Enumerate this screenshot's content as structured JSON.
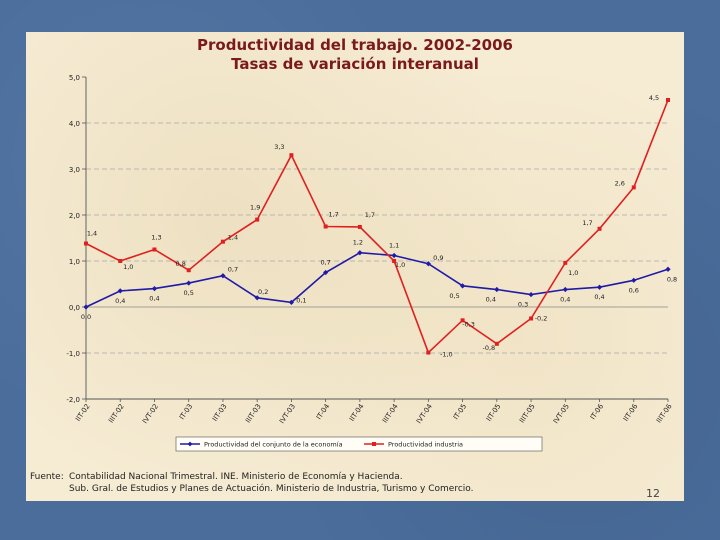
{
  "slide": {
    "source_label": "Fuente:",
    "source_line1": "Contabilidad Nacional Trimestral. INE. Ministerio de Economía y Hacienda.",
    "source_line2": "Sub. Gral. de Estudios y Planes de Actuación. Ministerio de Industria, Turismo y Comercio.",
    "page_number": "12"
  },
  "colors": {
    "series_economy": "#1f1aa8",
    "series_industry": "#e02020",
    "title": "#7a1a1a"
  },
  "chart_data": {
    "type": "line",
    "title": "Productividad del trabajo. 2002-2006",
    "subtitle": "Tasas de variación interanual",
    "xlabel": "",
    "ylabel": "",
    "ylim": [
      -2.0,
      5.0
    ],
    "yticks": [
      "5,0",
      "4,0",
      "3,0",
      "2,0",
      "1,0",
      "0,0",
      "-1,0",
      "-2,0"
    ],
    "ytick_values": [
      5,
      4,
      3,
      2,
      1,
      0,
      -1,
      -2
    ],
    "categories": [
      "IIT-02",
      "IIIT-02",
      "IVT-02",
      "IT-03",
      "IIT-03",
      "IIIT-03",
      "IVT-03",
      "IT-04",
      "IIT-04",
      "IIIT-04",
      "IVT-04",
      "IT-05",
      "IIT-05",
      "IIIT-05",
      "IVT-05",
      "IT-06",
      "IIT-06",
      "IIIT-06"
    ],
    "legend_position": "bottom",
    "series": [
      {
        "name": "Productividad del conjunto de la economía",
        "values": [
          0.0,
          0.35,
          0.4,
          0.52,
          0.68,
          0.2,
          0.1,
          0.75,
          1.18,
          1.12,
          0.94,
          0.46,
          0.38,
          0.27,
          0.38,
          0.43,
          0.58,
          0.82
        ],
        "labels": [
          "0,0",
          "0,4",
          "0,4",
          "0,5",
          "0,7",
          "0,2",
          "0,1",
          "0,7",
          "1,2",
          "1,1",
          "0,9",
          "0,5",
          "0,4",
          "0,3",
          "0,4",
          "0,4",
          "0,6",
          "0,8"
        ]
      },
      {
        "name": "Productividad industria",
        "values": [
          1.38,
          1.0,
          1.25,
          0.8,
          1.42,
          1.9,
          3.3,
          1.75,
          1.74,
          1.0,
          -0.99,
          -0.29,
          -0.8,
          -0.25,
          0.96,
          1.7,
          2.6,
          4.5
        ],
        "labels": [
          "1,4",
          "1,0",
          "1,3",
          "0,8",
          "1,4",
          "1,9",
          "3,3",
          "1,7",
          "1,7",
          "1,0",
          "-1,0",
          "-0,3",
          "-0,8",
          "-0,2",
          "1,0",
          "1,7",
          "2,6",
          "4,5"
        ]
      }
    ]
  }
}
